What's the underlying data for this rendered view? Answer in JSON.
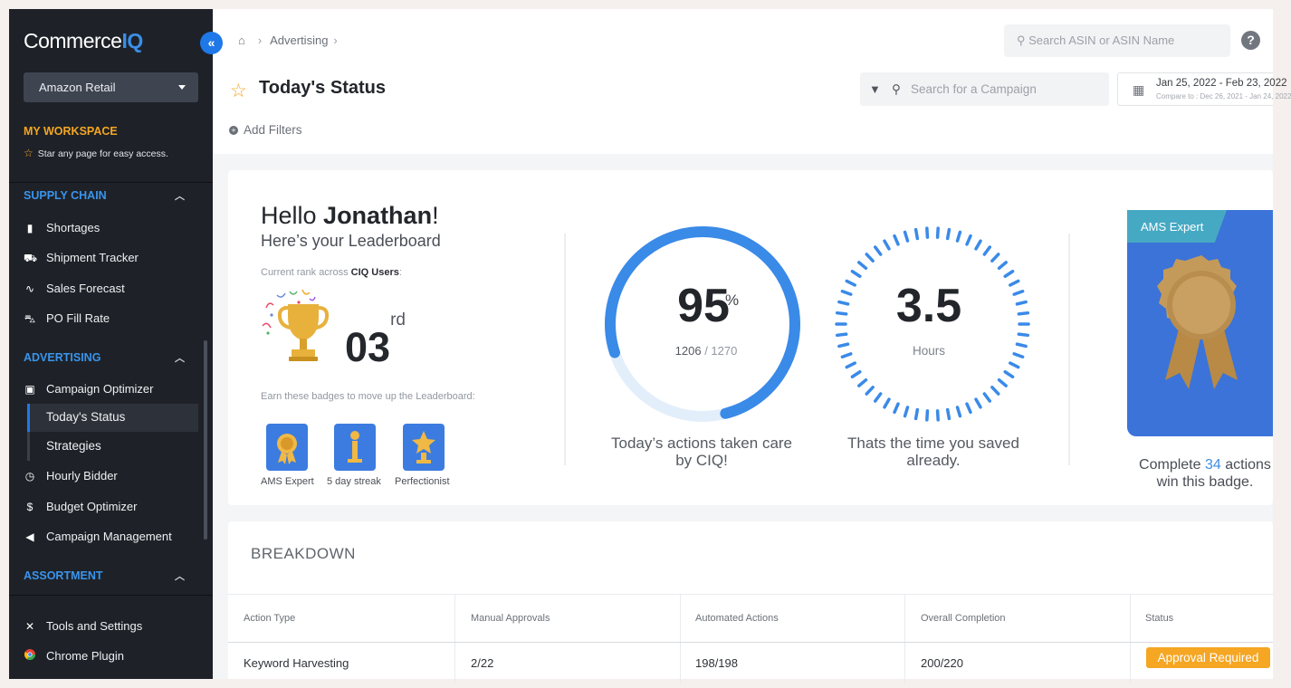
{
  "app": {
    "brand_a": "Commerce",
    "brand_b": "IQ",
    "collapse_icon": "double-chevron-left-icon"
  },
  "sidebar": {
    "retailer": "Amazon Retail",
    "workspace": {
      "title": "MY WORKSPACE",
      "hint": "Star any page for easy access."
    },
    "sections": [
      {
        "title": "SUPPLY CHAIN",
        "items": [
          "Shortages",
          "Shipment Tracker",
          "Sales Forecast",
          "PO Fill Rate"
        ]
      },
      {
        "title": "ADVERTISING",
        "items": [
          "Campaign Optimizer",
          "Today's Status",
          "Strategies",
          "Hourly Bidder",
          "Budget Optimizer",
          "Campaign Management"
        ]
      },
      {
        "title": "ASSORTMENT",
        "items": []
      }
    ],
    "footer": [
      "Tools and Settings",
      "Chrome Plugin"
    ]
  },
  "header": {
    "breadcrumb": [
      "Advertising"
    ],
    "search_asin_placeholder": "Search ASIN or ASIN Name",
    "page_title": "Today's Status",
    "campaign_search_placeholder": "Search for a Campaign",
    "date_range": "Jan 25, 2022 - Feb 23, 2022",
    "compare_to": "Compare to : Dec 26, 2021 - Jan 24, 2022",
    "add_filters": "Add Filters"
  },
  "leaderboard": {
    "hello": "Hello",
    "user": "Jonathan",
    "exclaim": "!",
    "subtitle": "Here’s your Leaderboard",
    "rank_label": "Current rank across",
    "rank_group": "CIQ Users",
    "rank_colon": ":",
    "rank": "03",
    "rank_suffix": "rd",
    "badges_label": "Earn these badges to move up the Leaderboard:",
    "badges": [
      "AMS Expert",
      "5 day streak",
      "Perfectionist"
    ]
  },
  "stats": {
    "actions_pct": 95,
    "actions_pct_text": "95",
    "pct_symbol": "%",
    "actions_done": "1206",
    "ratio_sep": " / ",
    "actions_total": "1270",
    "actions_caption_1": "Today’s actions taken care",
    "actions_caption_2": "by CIQ!",
    "hours_saved": "3.5",
    "hours_unit": "Hours",
    "hours_caption_1": "Thats the time you saved",
    "hours_caption_2": "already."
  },
  "badge_card": {
    "title": "AMS Expert",
    "complete_prefix": "Complete",
    "complete_count": "34",
    "complete_suffix": "actions",
    "complete_line2": "win this badge."
  },
  "breakdown": {
    "title": "BREAKDOWN",
    "columns": [
      "Action Type",
      "Manual Approvals",
      "Automated Actions",
      "Overall Completion",
      "Status"
    ],
    "rows": [
      [
        "Keyword Harvesting",
        "2/22",
        "198/198",
        "200/220",
        "Approval Required"
      ]
    ]
  },
  "colors": {
    "accent": "#1f78e8",
    "status_orange": "#f5a623",
    "sidebar_bg": "#1e2228",
    "section_blue": "#3a94ec",
    "badge_blue": "#3b73d8"
  }
}
